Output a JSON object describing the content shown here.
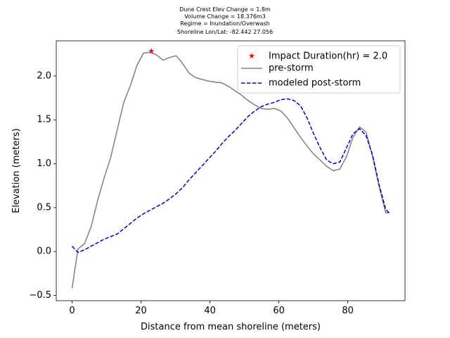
{
  "chart_data": {
    "type": "line",
    "title_lines": [
      "Dune Crest Elev Change = 1.8m",
      "Volume Change = 18.376m3",
      "Regime = Inundation/Overwash",
      "Shoreline Lon/Lat: -82.442 27.056"
    ],
    "xlabel": "Distance from mean shoreline (meters)",
    "ylabel": "Elevation (meters)",
    "xlim": [
      -4.6,
      96.6
    ],
    "ylim": [
      -0.56,
      2.4
    ],
    "xticks": [
      0,
      20,
      40,
      60,
      80
    ],
    "yticks": [
      -0.5,
      0.0,
      0.5,
      1.0,
      1.5,
      2.0
    ],
    "xtick_labels": [
      "0",
      "20",
      "40",
      "60",
      "80"
    ],
    "ytick_labels": [
      "−0.5",
      "0.0",
      "0.5",
      "1.0",
      "1.5",
      "2.0"
    ],
    "grid": false,
    "legend_position": "top-right",
    "series": [
      {
        "name": "Impact Duration(hr) = 2.0",
        "style": "marker-star",
        "color": "#ff0000",
        "x": [
          23.0
        ],
        "y": [
          2.28
        ]
      },
      {
        "name": "pre-storm",
        "style": "solid",
        "color": "#808080",
        "x": [
          0.0,
          1.7,
          3.6,
          5.5,
          7.4,
          9.3,
          11.2,
          13.1,
          15.0,
          16.9,
          18.8,
          20.7,
          22.6,
          24.5,
          26.4,
          28.3,
          30.2,
          32.1,
          34.0,
          35.9,
          37.8,
          39.7,
          41.6,
          43.5,
          45.4,
          47.3,
          49.2,
          51.1,
          53.0,
          54.9,
          56.8,
          58.7,
          60.6,
          62.5,
          64.4,
          66.3,
          68.2,
          70.1,
          72.0,
          73.9,
          75.8,
          77.7,
          79.6,
          81.5,
          83.4,
          85.3,
          87.2,
          89.1,
          91.0,
          92.0
        ],
        "y": [
          -0.42,
          0.03,
          0.09,
          0.28,
          0.58,
          0.84,
          1.07,
          1.39,
          1.7,
          1.89,
          2.12,
          2.26,
          2.27,
          2.24,
          2.18,
          2.21,
          2.23,
          2.14,
          2.03,
          1.98,
          1.96,
          1.94,
          1.93,
          1.92,
          1.88,
          1.83,
          1.78,
          1.72,
          1.67,
          1.63,
          1.62,
          1.63,
          1.6,
          1.52,
          1.41,
          1.3,
          1.2,
          1.11,
          1.04,
          0.97,
          0.92,
          0.94,
          1.08,
          1.3,
          1.42,
          1.36,
          1.08,
          0.74,
          0.44,
          0.44
        ]
      },
      {
        "name": "modeled post-storm",
        "style": "dashed",
        "color": "#0000cc",
        "x": [
          0.0,
          1.7,
          3.6,
          5.5,
          7.4,
          9.3,
          11.2,
          13.1,
          15.0,
          16.9,
          18.8,
          20.7,
          22.6,
          24.5,
          26.4,
          28.3,
          30.2,
          32.1,
          34.0,
          35.9,
          37.8,
          39.7,
          41.6,
          43.5,
          45.4,
          47.3,
          49.2,
          51.1,
          53.0,
          54.9,
          56.8,
          58.7,
          60.6,
          62.5,
          64.4,
          66.3,
          68.2,
          70.1,
          72.0,
          73.9,
          75.8,
          77.7,
          79.6,
          81.5,
          83.4,
          85.3,
          87.2,
          89.1,
          91.0,
          92.0
        ],
        "y": [
          0.06,
          -0.01,
          0.02,
          0.06,
          0.1,
          0.14,
          0.17,
          0.2,
          0.26,
          0.32,
          0.38,
          0.43,
          0.47,
          0.51,
          0.55,
          0.6,
          0.66,
          0.73,
          0.82,
          0.9,
          0.98,
          1.06,
          1.14,
          1.23,
          1.31,
          1.38,
          1.46,
          1.54,
          1.6,
          1.65,
          1.68,
          1.7,
          1.73,
          1.74,
          1.72,
          1.66,
          1.52,
          1.34,
          1.18,
          1.04,
          1.0,
          1.02,
          1.18,
          1.34,
          1.4,
          1.32,
          1.1,
          0.76,
          0.48,
          0.44
        ]
      }
    ]
  }
}
